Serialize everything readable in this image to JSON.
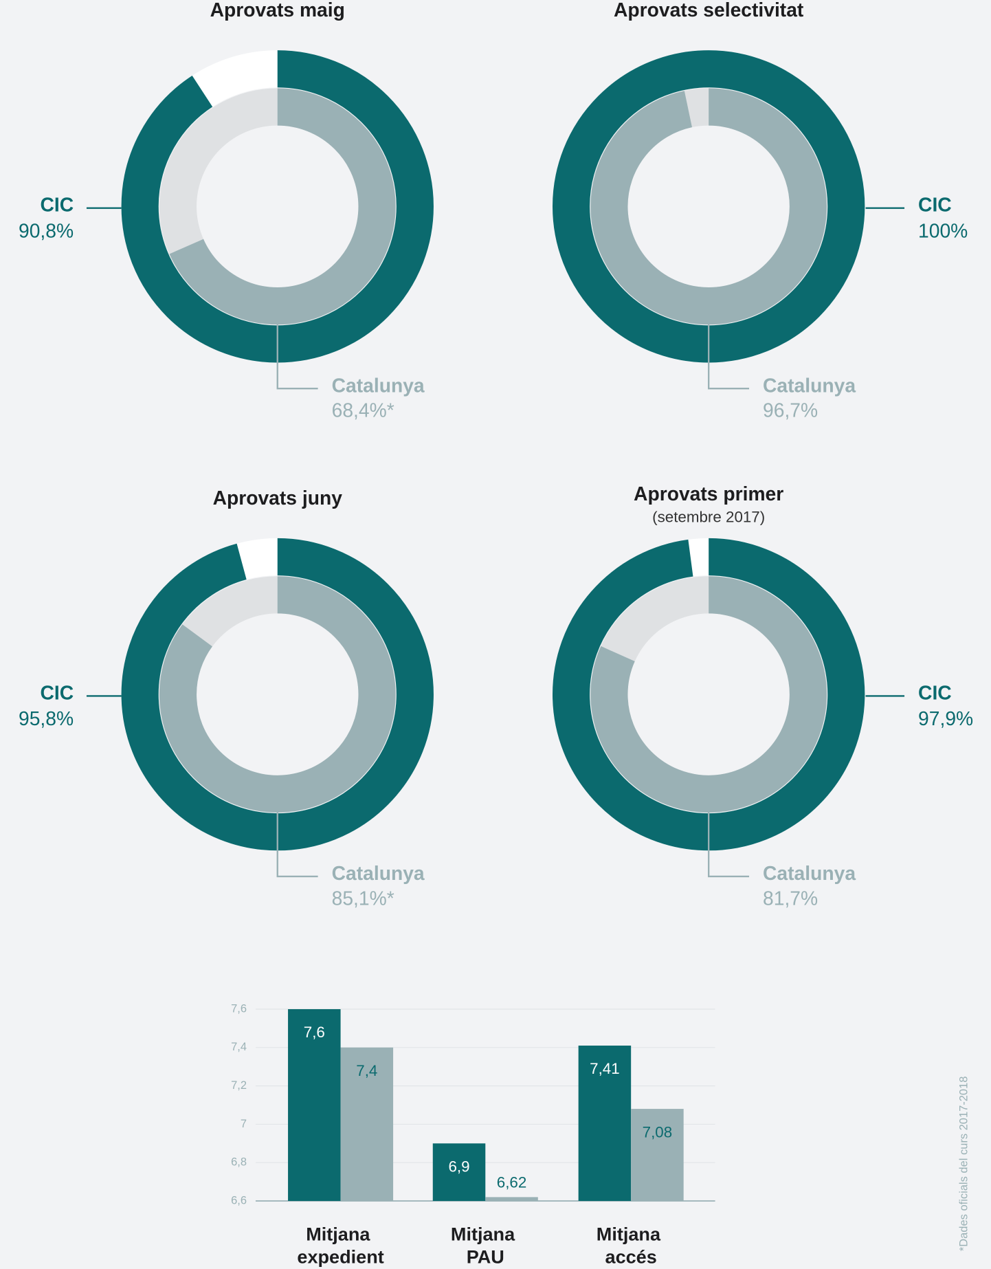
{
  "chart_data": [
    {
      "type": "donut",
      "title": "Aprovats maig",
      "categories": [
        "CIC",
        "Catalunya"
      ],
      "values": [
        90.8,
        68.4
      ],
      "value_labels": [
        "90,8%",
        "68,4%*"
      ],
      "colors": [
        "#0b6a6e",
        "#9ab1b5"
      ],
      "ylim": [
        0,
        100
      ],
      "label_side": "left"
    },
    {
      "type": "donut",
      "title": "Aprovats selectivitat",
      "categories": [
        "CIC",
        "Catalunya"
      ],
      "values": [
        100,
        96.7
      ],
      "value_labels": [
        "100%",
        "96,7%"
      ],
      "colors": [
        "#0b6a6e",
        "#9ab1b5"
      ],
      "ylim": [
        0,
        100
      ],
      "label_side": "right"
    },
    {
      "type": "donut",
      "title": "Aprovats juny",
      "categories": [
        "CIC",
        "Catalunya"
      ],
      "values": [
        95.8,
        85.1
      ],
      "value_labels": [
        "95,8%",
        "85,1%*"
      ],
      "colors": [
        "#0b6a6e",
        "#9ab1b5"
      ],
      "ylim": [
        0,
        100
      ],
      "label_side": "left"
    },
    {
      "type": "donut",
      "title": "Aprovats primer",
      "subtitle": "(setembre 2017)",
      "categories": [
        "CIC",
        "Catalunya"
      ],
      "values": [
        97.9,
        81.7
      ],
      "value_labels": [
        "97,9%",
        "81,7%"
      ],
      "colors": [
        "#0b6a6e",
        "#9ab1b5"
      ],
      "ylim": [
        0,
        100
      ],
      "label_side": "right"
    },
    {
      "type": "bar",
      "categories": [
        "Mitjana expedient",
        "Mitjana PAU",
        "Mitjana accés"
      ],
      "series": [
        {
          "name": "CIC",
          "color": "#0b6a6e",
          "values": [
            7.6,
            6.9,
            7.41
          ],
          "value_labels": [
            "7,6",
            "6,9",
            "7,41"
          ]
        },
        {
          "name": "Catalunya",
          "color": "#9ab1b5",
          "values": [
            7.4,
            6.62,
            7.08
          ],
          "value_labels": [
            "7,4",
            "6,62",
            "7,08"
          ]
        }
      ],
      "ylim": [
        6.6,
        7.6
      ],
      "yticks": [
        {
          "value": 6.6,
          "label": "6,6"
        },
        {
          "value": 6.8,
          "label": "6,8"
        },
        7,
        {
          "value": 7.2,
          "label": "7,2"
        },
        {
          "value": 7.4,
          "label": "7,4"
        },
        {
          "value": 7.6,
          "label": "7,6"
        }
      ],
      "grid": true,
      "footnote": "*Dades oficials del curs 2017-2018"
    }
  ]
}
